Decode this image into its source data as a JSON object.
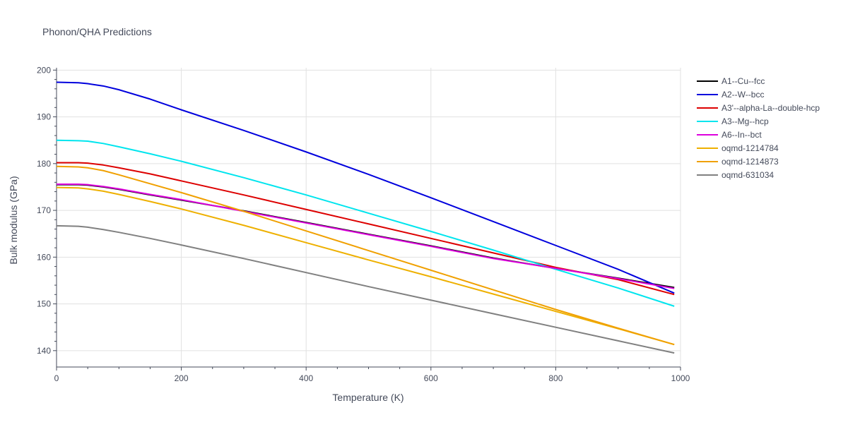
{
  "chart_data": {
    "type": "line",
    "title": "Phonon/QHA Predictions",
    "xlabel": "Temperature (K)",
    "ylabel": "Bulk modulus (GPa)",
    "xlim": [
      0,
      1000
    ],
    "ylim": [
      136.5,
      200.5
    ],
    "x_ticks": [
      0,
      200,
      400,
      600,
      800,
      1000
    ],
    "y_ticks": [
      140,
      150,
      160,
      170,
      180,
      190,
      200
    ],
    "grid": true,
    "legend_position": "top-right",
    "series": [
      {
        "name": "A1--Cu--fcc",
        "color": "#000000",
        "points": [
          [
            0,
            175.5
          ],
          [
            35,
            175.5
          ],
          [
            50,
            175.4
          ],
          [
            75,
            175.0
          ],
          [
            100,
            174.5
          ],
          [
            150,
            173.3
          ],
          [
            200,
            172.2
          ],
          [
            300,
            169.9
          ],
          [
            400,
            167.4
          ],
          [
            500,
            164.9
          ],
          [
            600,
            162.4
          ],
          [
            700,
            159.8
          ],
          [
            800,
            157.6
          ],
          [
            900,
            155.5
          ],
          [
            990,
            153.5
          ]
        ]
      },
      {
        "name": "A2--W--bcc",
        "color": "#0000dd",
        "points": [
          [
            0,
            197.4
          ],
          [
            35,
            197.3
          ],
          [
            50,
            197.1
          ],
          [
            75,
            196.6
          ],
          [
            100,
            195.8
          ],
          [
            150,
            193.8
          ],
          [
            200,
            191.5
          ],
          [
            300,
            187.1
          ],
          [
            400,
            182.5
          ],
          [
            500,
            177.7
          ],
          [
            600,
            172.7
          ],
          [
            700,
            167.6
          ],
          [
            800,
            162.5
          ],
          [
            900,
            157.4
          ],
          [
            990,
            152.3
          ]
        ]
      },
      {
        "name": "A3'--alpha-La--double-hcp",
        "color": "#dd0000",
        "points": [
          [
            0,
            180.2
          ],
          [
            35,
            180.2
          ],
          [
            50,
            180.1
          ],
          [
            75,
            179.7
          ],
          [
            100,
            179.1
          ],
          [
            150,
            177.8
          ],
          [
            200,
            176.3
          ],
          [
            300,
            173.3
          ],
          [
            400,
            170.2
          ],
          [
            500,
            167.1
          ],
          [
            600,
            164.0
          ],
          [
            700,
            160.9
          ],
          [
            800,
            157.8
          ],
          [
            900,
            155.2
          ],
          [
            990,
            152.0
          ]
        ]
      },
      {
        "name": "A3--Mg--hcp",
        "color": "#00e5ee",
        "points": [
          [
            0,
            185.0
          ],
          [
            35,
            184.9
          ],
          [
            50,
            184.8
          ],
          [
            75,
            184.3
          ],
          [
            100,
            183.6
          ],
          [
            150,
            182.1
          ],
          [
            200,
            180.5
          ],
          [
            300,
            177.0
          ],
          [
            400,
            173.3
          ],
          [
            500,
            169.4
          ],
          [
            600,
            165.5
          ],
          [
            700,
            161.5
          ],
          [
            800,
            157.4
          ],
          [
            900,
            153.4
          ],
          [
            990,
            149.5
          ]
        ]
      },
      {
        "name": "A6--In--bct",
        "color": "#dd00dd",
        "points": [
          [
            0,
            175.6
          ],
          [
            35,
            175.6
          ],
          [
            50,
            175.5
          ],
          [
            75,
            175.1
          ],
          [
            100,
            174.6
          ],
          [
            150,
            173.4
          ],
          [
            200,
            172.3
          ],
          [
            300,
            169.8
          ],
          [
            400,
            167.3
          ],
          [
            500,
            164.8
          ],
          [
            600,
            162.3
          ],
          [
            700,
            159.7
          ],
          [
            800,
            157.6
          ],
          [
            900,
            155.4
          ],
          [
            990,
            153.3
          ]
        ]
      },
      {
        "name": "oqmd-1214784",
        "color": "#eeb000",
        "points": [
          [
            0,
            174.9
          ],
          [
            35,
            174.8
          ],
          [
            50,
            174.6
          ],
          [
            75,
            174.1
          ],
          [
            100,
            173.4
          ],
          [
            150,
            171.9
          ],
          [
            200,
            170.3
          ],
          [
            300,
            166.8
          ],
          [
            400,
            163.1
          ],
          [
            500,
            159.4
          ],
          [
            600,
            155.8
          ],
          [
            700,
            152.1
          ],
          [
            800,
            148.4
          ],
          [
            900,
            144.7
          ],
          [
            990,
            141.3
          ]
        ]
      },
      {
        "name": "oqmd-1214873",
        "color": "#f0a000",
        "points": [
          [
            0,
            179.4
          ],
          [
            35,
            179.3
          ],
          [
            50,
            179.1
          ],
          [
            75,
            178.5
          ],
          [
            100,
            177.6
          ],
          [
            150,
            175.7
          ],
          [
            200,
            173.8
          ],
          [
            300,
            169.8
          ],
          [
            400,
            165.6
          ],
          [
            500,
            161.4
          ],
          [
            600,
            157.2
          ],
          [
            700,
            153.0
          ],
          [
            800,
            148.8
          ],
          [
            900,
            144.8
          ],
          [
            990,
            141.3
          ]
        ]
      },
      {
        "name": "oqmd-631034",
        "color": "#808080",
        "points": [
          [
            0,
            166.7
          ],
          [
            35,
            166.6
          ],
          [
            50,
            166.4
          ],
          [
            75,
            165.9
          ],
          [
            100,
            165.3
          ],
          [
            150,
            164.0
          ],
          [
            200,
            162.6
          ],
          [
            300,
            159.7
          ],
          [
            400,
            156.7
          ],
          [
            500,
            153.7
          ],
          [
            600,
            150.8
          ],
          [
            700,
            147.9
          ],
          [
            800,
            145.0
          ],
          [
            900,
            142.1
          ],
          [
            990,
            139.5
          ]
        ]
      }
    ]
  }
}
